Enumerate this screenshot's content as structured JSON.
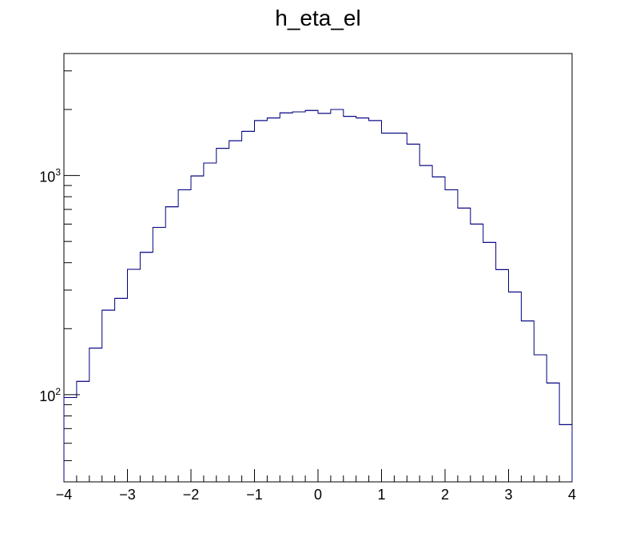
{
  "chart_data": {
    "type": "bar",
    "histogram": true,
    "title": "h_eta_el",
    "xlabel": "",
    "ylabel": "",
    "xlim": [
      -4,
      4
    ],
    "ylim": [
      40,
      3600
    ],
    "yscale": "log",
    "grid": false,
    "legend": "none",
    "line_color": "#000080",
    "x_tick_labels": [
      "−4",
      "−3",
      "−2",
      "−1",
      "0",
      "1",
      "2",
      "3",
      "4"
    ],
    "y_tick_labels": [
      {
        "base": "10",
        "exp": "2",
        "value": 100
      },
      {
        "base": "10",
        "exp": "3",
        "value": 1000
      }
    ],
    "bin_edges": [
      -4.0,
      -3.8,
      -3.6,
      -3.4,
      -3.2,
      -3.0,
      -2.8,
      -2.6,
      -2.4,
      -2.2,
      -2.0,
      -1.8,
      -1.6,
      -1.4,
      -1.2,
      -1.0,
      -0.8,
      -0.6,
      -0.4,
      -0.2,
      0.0,
      0.2,
      0.4,
      0.6,
      0.8,
      1.0,
      1.2,
      1.4,
      1.6,
      1.8,
      2.0,
      2.2,
      2.4,
      2.6,
      2.8,
      3.0,
      3.2,
      3.4,
      3.6,
      3.8,
      4.0
    ],
    "values": [
      97,
      115,
      163,
      243,
      275,
      373,
      446,
      580,
      720,
      860,
      995,
      1140,
      1330,
      1440,
      1590,
      1780,
      1830,
      1930,
      1950,
      1980,
      1920,
      2000,
      1860,
      1830,
      1780,
      1560,
      1560,
      1390,
      1110,
      985,
      860,
      710,
      600,
      495,
      372,
      294,
      217,
      152,
      113,
      73
    ]
  }
}
